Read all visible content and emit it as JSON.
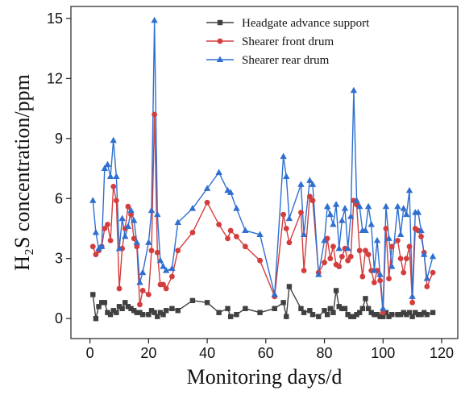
{
  "chart_data": {
    "type": "line",
    "x_label": "Monitoring days/d",
    "y_label": "H₂S concentration/ppm",
    "xlim": [
      -6.5,
      125.5
    ],
    "ylim": [
      -1,
      15.6
    ],
    "xticks": [
      0,
      20,
      40,
      60,
      80,
      100,
      120
    ],
    "yticks": [
      0,
      3,
      6,
      9,
      12,
      15
    ],
    "grid": false,
    "legend": "upper right",
    "x": [
      1,
      2,
      3,
      4,
      5,
      6,
      7,
      8,
      9,
      10,
      11,
      12,
      13,
      14,
      15,
      16,
      17,
      18,
      20,
      21,
      22,
      23,
      24,
      25,
      26,
      28,
      30,
      35,
      40,
      44,
      47,
      48,
      50,
      53,
      58,
      63,
      66,
      67,
      68,
      72,
      73,
      75,
      76,
      78,
      80,
      81,
      82,
      83,
      84,
      85,
      86,
      87,
      88,
      89,
      90,
      91,
      92,
      93,
      94,
      95,
      96,
      97,
      98,
      99,
      100,
      101,
      102,
      103,
      105,
      106,
      107,
      108,
      109,
      110,
      111,
      112,
      113,
      114,
      115,
      117
    ],
    "series": [
      {
        "name": "Headgate advance support",
        "color": "#404040",
        "marker": "square",
        "values": [
          1.2,
          0.0,
          0.6,
          0.8,
          0.8,
          0.3,
          0.2,
          0.4,
          0.3,
          0.6,
          0.5,
          0.8,
          0.6,
          0.5,
          0.4,
          0.3,
          0.3,
          0.2,
          0.2,
          0.4,
          0.3,
          0.1,
          0.3,
          0.2,
          0.4,
          0.5,
          0.4,
          0.9,
          0.8,
          0.3,
          0.5,
          0.1,
          0.2,
          0.5,
          0.3,
          0.5,
          0.8,
          0.1,
          1.6,
          0.5,
          0.3,
          0.4,
          0.2,
          0.1,
          0.4,
          0.2,
          0.5,
          0.3,
          1.4,
          0.6,
          0.5,
          0.5,
          0.2,
          0.1,
          0.1,
          0.2,
          0.3,
          0.5,
          1.0,
          0.5,
          0.3,
          0.2,
          0.2,
          0.1,
          0.1,
          0.3,
          0.1,
          0.2,
          0.2,
          0.2,
          0.3,
          0.2,
          0.3,
          0.1,
          0.3,
          0.2,
          0.2,
          0.3,
          0.2,
          0.3
        ]
      },
      {
        "name": "Shearer front drum",
        "color": "#d43d3d",
        "marker": "circle",
        "values": [
          3.6,
          3.2,
          3.4,
          3.6,
          4.5,
          4.7,
          3.9,
          6.6,
          5.9,
          1.5,
          3.5,
          4.5,
          5.6,
          5.2,
          4.0,
          3.6,
          0.7,
          1.4,
          1.2,
          3.4,
          10.2,
          3.3,
          1.7,
          1.7,
          1.5,
          2.1,
          3.4,
          4.3,
          5.8,
          4.7,
          4.0,
          4.4,
          4.1,
          3.6,
          2.9,
          1.1,
          5.2,
          4.5,
          3.8,
          5.3,
          2.4,
          6.1,
          5.9,
          2.3,
          2.8,
          4.0,
          3.0,
          3.6,
          2.7,
          2.6,
          3.1,
          3.5,
          2.9,
          3.1,
          5.9,
          5.7,
          3.4,
          2.1,
          3.4,
          3.2,
          2.4,
          1.8,
          2.4,
          1.9,
          0.3,
          4.5,
          2.0,
          3.6,
          3.9,
          3.0,
          2.3,
          3.0,
          3.6,
          0.8,
          4.5,
          4.4,
          4.1,
          3.3,
          1.6,
          2.3
        ]
      },
      {
        "name": "Shearer rear drum",
        "color": "#2f6fd0",
        "marker": "triangle",
        "values": [
          5.9,
          4.3,
          3.5,
          3.6,
          7.5,
          7.7,
          7.1,
          8.9,
          7.1,
          3.5,
          5.0,
          4.1,
          4.6,
          5.4,
          4.9,
          3.8,
          1.8,
          2.3,
          3.8,
          5.4,
          14.9,
          5.2,
          2.9,
          2.6,
          2.4,
          2.5,
          4.8,
          5.5,
          6.5,
          7.3,
          6.4,
          6.3,
          5.5,
          4.4,
          4.2,
          1.2,
          8.1,
          7.1,
          5.0,
          6.7,
          4.2,
          6.9,
          6.7,
          2.2,
          3.9,
          5.6,
          5.2,
          4.7,
          5.7,
          3.5,
          4.9,
          5.5,
          3.5,
          5.1,
          11.4,
          5.9,
          5.6,
          4.4,
          4.4,
          5.6,
          4.7,
          2.4,
          3.9,
          2.2,
          0.5,
          5.6,
          4.0,
          2.6,
          5.6,
          4.2,
          5.5,
          5.2,
          6.4,
          1.1,
          5.3,
          5.3,
          4.4,
          3.2,
          2.0,
          3.1
        ]
      }
    ]
  }
}
